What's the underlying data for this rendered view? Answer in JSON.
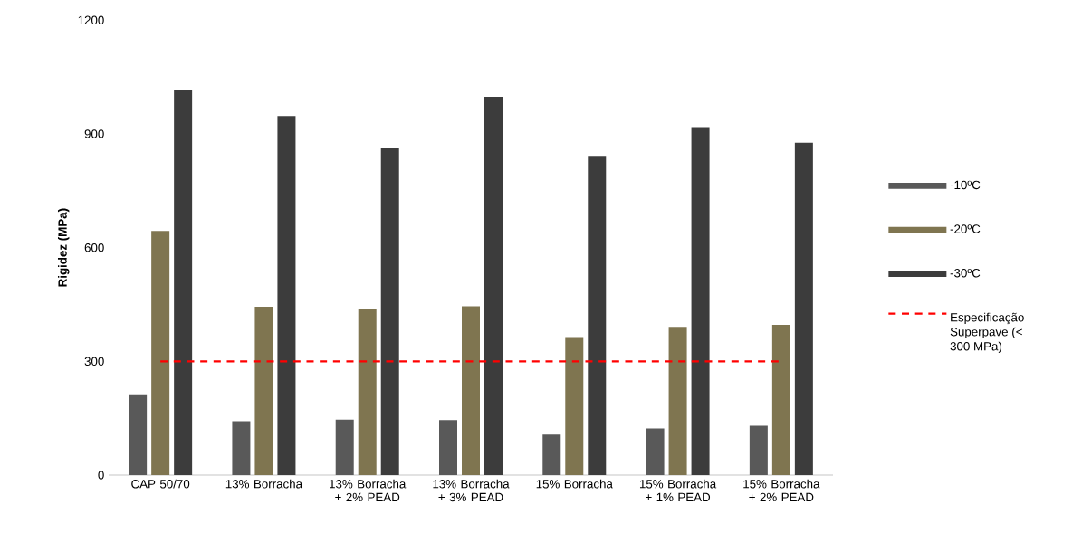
{
  "chart_data": {
    "type": "bar",
    "ylabel": "Rigidez (MPa)",
    "categories": [
      "CAP 50/70",
      "13% Borracha",
      "13% Borracha + 2% PEAD",
      "13% Borracha + 3% PEAD",
      "15% Borracha",
      "15% Borracha + 1% PEAD",
      "15% Borracha + 2% PEAD"
    ],
    "series": [
      {
        "name": "-10ºC",
        "color": "#595959",
        "values": [
          213,
          142,
          146,
          145,
          107,
          123,
          130
        ]
      },
      {
        "name": "-20ºC",
        "color": "#7f7550",
        "values": [
          644,
          444,
          437,
          445,
          364,
          391,
          396
        ]
      },
      {
        "name": "-30ºC",
        "color": "#3c3c3c",
        "values": [
          1015,
          947,
          862,
          998,
          842,
          918,
          877
        ]
      }
    ],
    "ylim": [
      0,
      1200
    ],
    "yticks": [
      0,
      300,
      600,
      900,
      1200
    ],
    "ref_lines": [
      {
        "axis": "y",
        "value": 300,
        "label": "Especificação Superpave (< 300 MPa)",
        "color": "#ff0000",
        "line_style": "dashed"
      }
    ],
    "grid": false,
    "legend": "right"
  }
}
